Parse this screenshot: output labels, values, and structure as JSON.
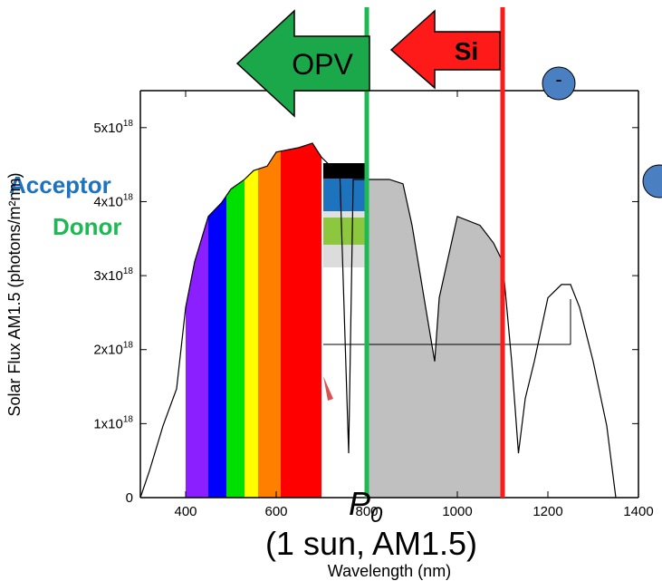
{
  "chart_data": {
    "type": "line",
    "y_label": "Solar Flux AM1.5 (photons/m²nm)",
    "x_label": "Wavelength (nm)",
    "x": [
      300,
      320,
      350,
      380,
      400,
      420,
      450,
      480,
      500,
      530,
      550,
      580,
      600,
      650,
      680,
      700,
      720,
      740,
      760,
      770,
      800,
      820,
      850,
      880,
      900,
      930,
      950,
      960,
      1000,
      1050,
      1080,
      1100,
      1120,
      1135,
      1150,
      1170,
      1200,
      1230,
      1250,
      1270,
      1300,
      1330,
      1350
    ],
    "series": [
      {
        "color": "#000000",
        "values": [
          0,
          3.6e+17,
          9.7e+17,
          1.47e+18,
          2.57e+18,
          3.19e+18,
          3.8e+18,
          3.99e+18,
          4.17e+18,
          4.3e+18,
          4.42e+18,
          4.48e+18,
          4.67e+18,
          4.73e+18,
          4.79e+18,
          4.6e+18,
          4.48e+18,
          4.48e+18,
          6e+17,
          4.3e+18,
          4.3e+18,
          4.3e+18,
          4.3e+18,
          4.24e+18,
          3.68e+18,
          2.57e+18,
          1.84e+18,
          2.7e+18,
          3.8e+18,
          3.68e+18,
          3.44e+18,
          3.19e+18,
          1.84e+18,
          6e+17,
          1.34e+18,
          1.84e+18,
          2.7e+18,
          2.88e+18,
          2.88e+18,
          2.57e+18,
          1.84e+18,
          9.7e+17,
          0
        ]
      }
    ],
    "bands": [
      {
        "from": 400,
        "to": 450,
        "color": "#8b1fff"
      },
      {
        "from": 450,
        "to": 490,
        "color": "#0000ff"
      },
      {
        "from": 490,
        "to": 530,
        "color": "#00e000"
      },
      {
        "from": 530,
        "to": 560,
        "color": "#ffff00"
      },
      {
        "from": 560,
        "to": 610,
        "color": "#ff8000"
      },
      {
        "from": 610,
        "to": 700,
        "color": "#ff0000"
      },
      {
        "from": 800,
        "to": 1100,
        "color": "#c0c0c0"
      }
    ],
    "markers": [
      {
        "x": 800,
        "color": "#1db954"
      },
      {
        "x": 1100,
        "color": "#ff1a1a"
      }
    ],
    "xlim": [
      300,
      1400
    ],
    "xticks": [
      400,
      600,
      800,
      1000,
      1200,
      1400
    ],
    "ylim": [
      0,
      5.5e+18
    ],
    "yticks": [
      0,
      {
        "value": 1e+18,
        "label": "1x10",
        "superscript": "18"
      },
      {
        "value": 2e+18,
        "label": "2x10",
        "superscript": "18"
      },
      {
        "value": 3e+18,
        "label": "3x10",
        "superscript": "18"
      },
      {
        "value": 4e+18,
        "label": "4x10",
        "superscript": "18"
      },
      {
        "value": 5e+18,
        "label": "5x10",
        "superscript": "18"
      }
    ],
    "annotations": {
      "opv": "OPV",
      "si": "Si",
      "acceptor": "Acceptor",
      "donor": "Donor",
      "electron": "-",
      "p0": "P",
      "p0_sub": "0",
      "condition": "(1 sun, AM1.5)"
    }
  }
}
